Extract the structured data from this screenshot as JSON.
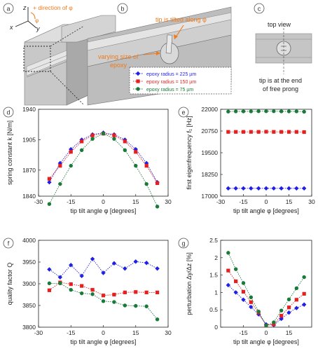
{
  "panels": {
    "a": {
      "label": "a",
      "axis_z": "z",
      "axis_x": "x",
      "axis_y": "y",
      "phi": "φ",
      "direction_label": "+ direction of φ"
    },
    "b": {
      "label": "b",
      "tip_label_1": "tip is tilted along φ",
      "epoxy_label_1": "varying size of",
      "epoxy_label_2": "epoxy"
    },
    "c": {
      "label": "c",
      "top_view": "top view",
      "caption_1": "tip is at the end",
      "caption_2": "of free prong"
    }
  },
  "legend": {
    "entries": [
      {
        "label": "epoxy radius = 225 µm",
        "color": "#1f1fe6"
      },
      {
        "label": "epoxy radius = 150 µm",
        "color": "#e61f1f"
      },
      {
        "label": "epoxy radius = 75 µm",
        "color": "#1a7a3a"
      }
    ]
  },
  "chart_data": [
    {
      "panel": "d",
      "type": "line",
      "ylabel": "spring constant k [N/m]",
      "xlabel": "tip tilt angle φ [degrees]",
      "xlim": [
        -30,
        30
      ],
      "ylim": [
        1840,
        1940
      ],
      "xticks": [
        -30,
        -15,
        0,
        15,
        30
      ],
      "yticks": [
        1840,
        1870,
        1905,
        1940
      ],
      "ytick_labels": [
        "1840",
        "1870",
        "1905",
        "1940"
      ],
      "series": [
        {
          "name": "epoxy radius = 225 µm",
          "x": [
            -25,
            -20,
            -15,
            -10,
            -5,
            0,
            5,
            10,
            15,
            20,
            25
          ],
          "y": [
            1856,
            1878,
            1894,
            1905,
            1911,
            1913,
            1911,
            1905,
            1894,
            1878,
            1856
          ]
        },
        {
          "name": "epoxy radius = 150 µm",
          "x": [
            -25,
            -20,
            -15,
            -10,
            -5,
            0,
            5,
            10,
            15,
            20,
            25
          ],
          "y": [
            1860,
            1875,
            1891,
            1903,
            1910,
            1912,
            1910,
            1903,
            1891,
            1875,
            1855
          ]
        },
        {
          "name": "epoxy radius = 75 µm",
          "x": [
            -25,
            -20,
            -15,
            -10,
            -5,
            0,
            5,
            10,
            15,
            20,
            25
          ],
          "y": [
            1831,
            1854,
            1875,
            1893,
            1906,
            1912,
            1906,
            1893,
            1875,
            1854,
            1828
          ]
        }
      ]
    },
    {
      "panel": "e",
      "type": "line",
      "ylabel": "first eigenfrequency f₁ [Hz]",
      "xlabel": "tip tilt angle φ [degrees]",
      "xlim": [
        -30,
        30
      ],
      "ylim": [
        17000,
        22000
      ],
      "xticks": [
        -30,
        -15,
        0,
        15,
        30
      ],
      "yticks": [
        17000,
        18250,
        19500,
        20750,
        22000
      ],
      "ytick_labels": [
        "17000",
        "18250",
        "19500",
        "20750",
        "22000"
      ],
      "series": [
        {
          "name": "epoxy radius = 225 µm",
          "x": [
            -25,
            -20,
            -15,
            -10,
            -5,
            0,
            5,
            10,
            15,
            20,
            25
          ],
          "y": [
            17450,
            17450,
            17450,
            17450,
            17450,
            17450,
            17450,
            17450,
            17450,
            17450,
            17450
          ]
        },
        {
          "name": "epoxy radius = 150 µm",
          "x": [
            -25,
            -20,
            -15,
            -10,
            -5,
            0,
            5,
            10,
            15,
            20,
            25
          ],
          "y": [
            20700,
            20700,
            20700,
            20700,
            20700,
            20710,
            20700,
            20700,
            20700,
            20700,
            20690
          ]
        },
        {
          "name": "epoxy radius = 75 µm",
          "x": [
            -25,
            -20,
            -15,
            -10,
            -5,
            0,
            5,
            10,
            15,
            20,
            25
          ],
          "y": [
            21870,
            21880,
            21880,
            21880,
            21890,
            21890,
            21890,
            21880,
            21880,
            21880,
            21860
          ]
        }
      ]
    },
    {
      "panel": "f",
      "type": "line",
      "ylabel": "quality factor Q",
      "xlabel": "tip tilt angle φ [degrees]",
      "xlim": [
        -30,
        30
      ],
      "ylim": [
        3800,
        4000
      ],
      "xticks": [
        -30,
        -15,
        0,
        15,
        30
      ],
      "yticks": [
        3800,
        3850,
        3900,
        3950,
        4000
      ],
      "ytick_labels": [
        "3800",
        "3850",
        "3900",
        "3950",
        "4000"
      ],
      "series": [
        {
          "name": "epoxy radius = 225 µm",
          "x": [
            -25,
            -20,
            -15,
            -10,
            -5,
            0,
            5,
            10,
            15,
            20,
            25
          ],
          "y": [
            3933,
            3915,
            3943,
            3918,
            3957,
            3925,
            3947,
            3935,
            3951,
            3948,
            3935
          ]
        },
        {
          "name": "epoxy radius = 150 µm",
          "x": [
            -25,
            -20,
            -15,
            -10,
            -5,
            0,
            5,
            10,
            15,
            20,
            25
          ],
          "y": [
            3885,
            3903,
            3899,
            3895,
            3886,
            3873,
            3875,
            3880,
            3881,
            3880,
            3880
          ]
        },
        {
          "name": "epoxy radius = 75 µm",
          "x": [
            -25,
            -20,
            -15,
            -10,
            -5,
            0,
            5,
            10,
            15,
            20,
            25
          ],
          "y": [
            3901,
            3901,
            3886,
            3878,
            3876,
            3860,
            3858,
            3850,
            3849,
            3848,
            3818
          ]
        }
      ]
    },
    {
      "panel": "g",
      "type": "line",
      "ylabel": "perturbation Δy/Δz [%]",
      "xlabel": "tip tilt angle φ [degrees]",
      "xlim": [
        -30,
        30
      ],
      "ylim": [
        0,
        2.5
      ],
      "xticks": [
        -15,
        0,
        15
      ],
      "yticks": [
        0,
        0.5,
        1,
        1.5,
        2,
        2.5
      ],
      "ytick_labels": [
        "0",
        "0.5",
        "1",
        "1.5",
        "2",
        "2.5"
      ],
      "series": [
        {
          "name": "epoxy radius = 225 µm",
          "x": [
            -25,
            -20,
            -15,
            -10,
            -5,
            0,
            5,
            10,
            15,
            20,
            25
          ],
          "y": [
            1.21,
            1.0,
            0.79,
            0.58,
            0.37,
            0.08,
            0.06,
            0.24,
            0.42,
            0.55,
            0.65
          ]
        },
        {
          "name": "epoxy radius = 150 µm",
          "x": [
            -25,
            -20,
            -15,
            -10,
            -5,
            0,
            5,
            10,
            15,
            20,
            25
          ],
          "y": [
            1.63,
            1.32,
            1.02,
            0.72,
            0.42,
            0.05,
            0.08,
            0.33,
            0.57,
            0.79,
            0.96
          ]
        },
        {
          "name": "epoxy radius = 75 µm",
          "x": [
            -25,
            -20,
            -15,
            -10,
            -5,
            0,
            5,
            10,
            15,
            20,
            25
          ],
          "y": [
            2.14,
            1.67,
            1.27,
            0.86,
            0.45,
            0.05,
            0.14,
            0.48,
            0.8,
            1.12,
            1.44
          ]
        }
      ]
    }
  ]
}
